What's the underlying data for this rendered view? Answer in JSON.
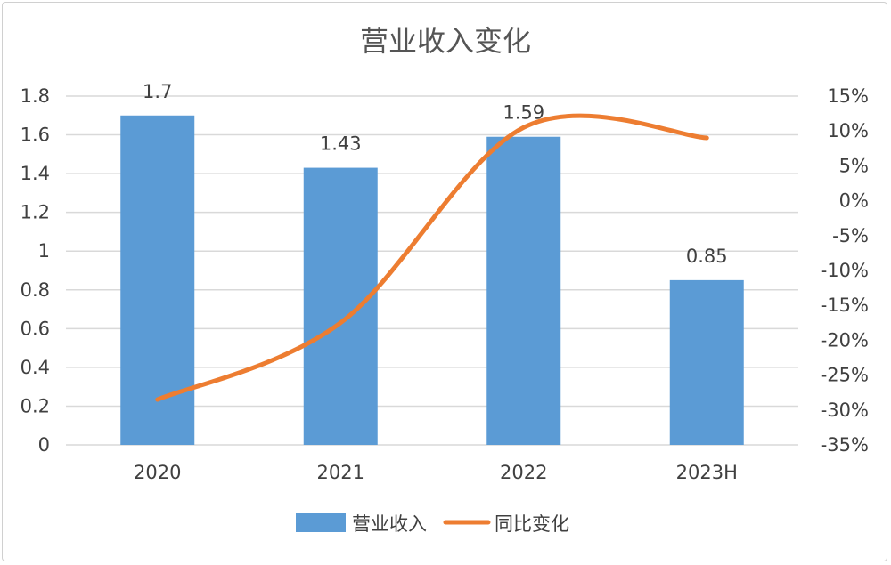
{
  "chart_data": {
    "type": "bar+line",
    "title": "营业收入变化",
    "categories": [
      "2020",
      "2021",
      "2022",
      "2023H"
    ],
    "series": [
      {
        "name": "营业收入",
        "type": "bar",
        "axis": "left",
        "color": "#5B9BD5",
        "values": [
          1.7,
          1.43,
          1.59,
          0.85
        ],
        "labels": [
          "1.7",
          "1.43",
          "1.59",
          "0.85"
        ]
      },
      {
        "name": "同比变化",
        "type": "line",
        "axis": "right",
        "color": "#ED7D31",
        "values": [
          -28.5,
          -17.5,
          10.5,
          9.0
        ]
      }
    ],
    "y_left": {
      "min": 0,
      "max": 1.8,
      "ticks": [
        "0",
        "0.2",
        "0.4",
        "0.6",
        "0.8",
        "1",
        "1.2",
        "1.4",
        "1.6",
        "1.8"
      ]
    },
    "y_right": {
      "min": -35,
      "max": 15,
      "ticks": [
        "-35%",
        "-30%",
        "-25%",
        "-20%",
        "-15%",
        "-10%",
        "-5%",
        "0%",
        "5%",
        "10%",
        "15%"
      ]
    },
    "grid": true,
    "legend": "bottom"
  }
}
